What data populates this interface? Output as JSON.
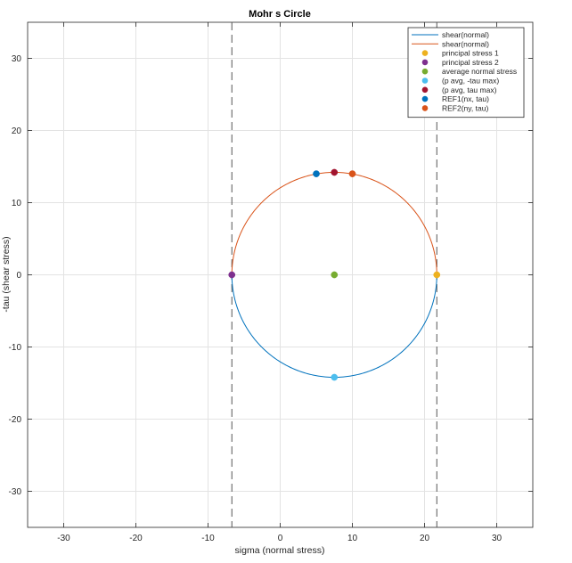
{
  "chart_data": {
    "type": "scatter",
    "title": "Mohr s Circle",
    "xlabel": "sigma (normal stress)",
    "ylabel": "-tau (shear stress)",
    "xlim": [
      -35,
      35
    ],
    "ylim": [
      -35,
      35
    ],
    "xticks": [
      -30,
      -20,
      -10,
      0,
      10,
      20,
      30
    ],
    "yticks": [
      -30,
      -20,
      -10,
      0,
      10,
      20,
      30
    ],
    "grid": true,
    "legend_position": "top-right",
    "circle": {
      "center": [
        7.5,
        0
      ],
      "radius": 14.2
    },
    "vertical_lines": [
      -6.7,
      21.7
    ],
    "series": [
      {
        "name": "shear(normal)",
        "kind": "line",
        "half": "lower",
        "color": "#0072BD"
      },
      {
        "name": "shear(normal)",
        "kind": "line",
        "half": "upper",
        "color": "#D95319"
      },
      {
        "name": "principal stress 1",
        "kind": "point",
        "x": 21.7,
        "y": 0,
        "color": "#EDB120"
      },
      {
        "name": "principal stress 2",
        "kind": "point",
        "x": -6.7,
        "y": 0,
        "color": "#7E2F8E"
      },
      {
        "name": "average normal stress",
        "kind": "point",
        "x": 7.5,
        "y": 0,
        "color": "#77AC30"
      },
      {
        "name": "(p avg, -tau max)",
        "kind": "point",
        "x": 7.5,
        "y": -14.2,
        "color": "#4DBEEE"
      },
      {
        "name": "(p avg, tau max)",
        "kind": "point",
        "x": 7.5,
        "y": 14.2,
        "color": "#A2142F"
      },
      {
        "name": "REF1(nx, tau)",
        "kind": "point",
        "x": 5.0,
        "y": 14.0,
        "color": "#0072BD"
      },
      {
        "name": "REF2(ny, tau)",
        "kind": "point",
        "x": 10.0,
        "y": 14.0,
        "color": "#D95319"
      }
    ]
  }
}
